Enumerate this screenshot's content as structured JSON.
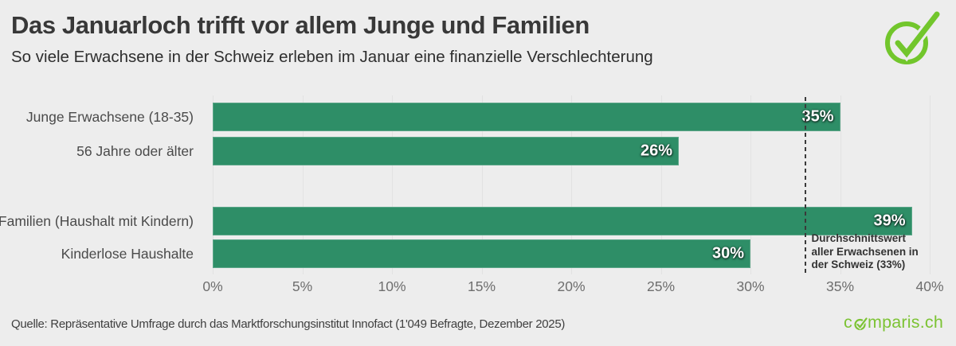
{
  "header": {
    "title": "Das Januarloch trifft vor allem Junge und Familien",
    "subtitle": "So viele Erwachsene in der Schweiz erleben im Januar eine finanzielle Verschlechterung"
  },
  "chart_data": {
    "type": "bar",
    "orientation": "horizontal",
    "title": "Das Januarloch trifft vor allem Junge und Familien",
    "subtitle": "So viele Erwachsene in der Schweiz erleben im Januar eine finanzielle Verschlechterung",
    "categories": [
      "Junge Erwachsene (18-35)",
      "56 Jahre oder älter",
      "Familien (Haushalt mit Kindern)",
      "Kinderlose Haushalte"
    ],
    "values": [
      35,
      26,
      39,
      30
    ],
    "value_labels": [
      "35%",
      "26%",
      "39%",
      "30%"
    ],
    "xlim": [
      0,
      40
    ],
    "x_ticks": [
      0,
      5,
      10,
      15,
      20,
      25,
      30,
      35,
      40
    ],
    "x_tick_labels": [
      "0%",
      "5%",
      "10%",
      "15%",
      "20%",
      "25%",
      "30%",
      "35%",
      "40%"
    ],
    "grid": true,
    "legend": false,
    "average_line": {
      "value": 33,
      "label_lines": [
        "Durchschnittswert",
        "aller Erwachsenen in",
        "der Schweiz (33%)"
      ]
    },
    "bar_color": "#2e8e67"
  },
  "footer": {
    "source": "Quelle: Repräsentative Umfrage durch das Marktforschungsinstitut Innofact (1'049 Befragte, Dezember 2025)",
    "brand": {
      "prefix": "c",
      "suffix": "mparis.ch"
    }
  },
  "icons": {
    "logo": "comparis-check-logo",
    "brand_o": "check-circle-o-glyph"
  },
  "colors": {
    "background": "#ededed",
    "bar_green": "#2e8e67",
    "brand_green": "#74c32e",
    "title_text": "#383838",
    "axis_text": "#6e6e6e",
    "annotation_text": "#333333"
  }
}
